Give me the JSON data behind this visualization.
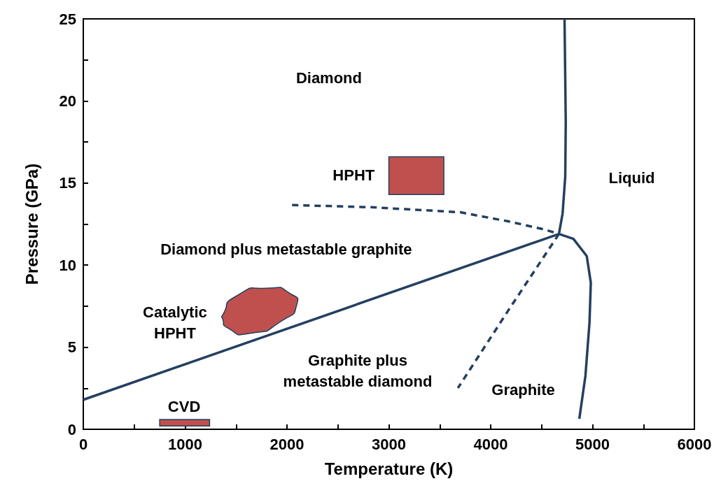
{
  "chart_data": {
    "type": "line",
    "xlabel": "Temperature (K)",
    "ylabel": "Pressure (GPa)",
    "xlim": [
      0,
      6000
    ],
    "ylim": [
      0,
      25
    ],
    "xticks": [
      0,
      {
        "value": 500,
        "label": null
      },
      1000,
      {
        "value": 1500,
        "label": null
      },
      2000,
      {
        "value": 2500,
        "label": null
      },
      3000,
      {
        "value": 3500,
        "label": null
      },
      4000,
      {
        "value": 4500,
        "label": null
      },
      5000,
      {
        "value": 5500,
        "label": null
      },
      6000
    ],
    "yticks": [
      0,
      {
        "value": 2.5,
        "label": null
      },
      5,
      {
        "value": 7.5,
        "label": null
      },
      10,
      {
        "value": 12.5,
        "label": null
      },
      15,
      {
        "value": 17.5,
        "label": null
      },
      20,
      {
        "value": 22.5,
        "label": null
      },
      25
    ],
    "series": [
      {
        "color": "#243f60",
        "line_style": "solid",
        "x": [
          0,
          4670
        ],
        "values": [
          1.8,
          11.9
        ]
      },
      {
        "color": "#243f60",
        "line_style": "solid",
        "x": [
          4670,
          4706,
          4732,
          4737,
          4725
        ],
        "values": [
          11.9,
          13.15,
          15.4,
          18.7,
          25
        ]
      },
      {
        "color": "#243f60",
        "line_style": "solid",
        "x": [
          4670,
          4812,
          4943,
          4983,
          4970,
          4930,
          4870
        ],
        "values": [
          11.9,
          11.6,
          10.55,
          8.93,
          6.49,
          3.25,
          0.64
        ]
      },
      {
        "color": "#243f60",
        "line_style": "dashed",
        "x": [
          2050,
          2817,
          3700,
          4179,
          4521,
          4670
        ],
        "values": [
          13.66,
          13.53,
          13.22,
          12.66,
          12.18,
          11.9
        ]
      },
      {
        "color": "#243f60",
        "line_style": "dashed",
        "x": [
          4670,
          4179,
          3678
        ],
        "values": [
          11.9,
          7.3,
          2.51
        ]
      },
      {
        "type": "area",
        "color": "#c0504d",
        "x": [
          3000,
          3540,
          3540,
          3000,
          3000
        ],
        "values": [
          14.3,
          14.3,
          16.6,
          16.6,
          14.3
        ]
      },
      {
        "type": "area",
        "color": "#c0504d",
        "x": [
          1358,
          1490,
          1834,
          2031,
          2097,
          1957,
          1638,
          1417,
          1358
        ],
        "values": [
          6.86,
          8.07,
          8.6,
          8.27,
          7.62,
          6.64,
          5.85,
          6.18,
          6.86
        ]
      },
      {
        "type": "area",
        "color": "#c0504d",
        "x": [
          750,
          1240,
          1240,
          750,
          750
        ],
        "values": [
          0.2,
          0.2,
          0.6,
          0.6,
          0.2
        ]
      }
    ],
    "annotations": [
      "Diamond",
      "HPHT",
      "Liquid",
      "Diamond plus metastable graphite",
      "Catalytic\nHPHT",
      "Graphite plus\nmetastable diamond",
      "Graphite",
      "CVD"
    ]
  }
}
